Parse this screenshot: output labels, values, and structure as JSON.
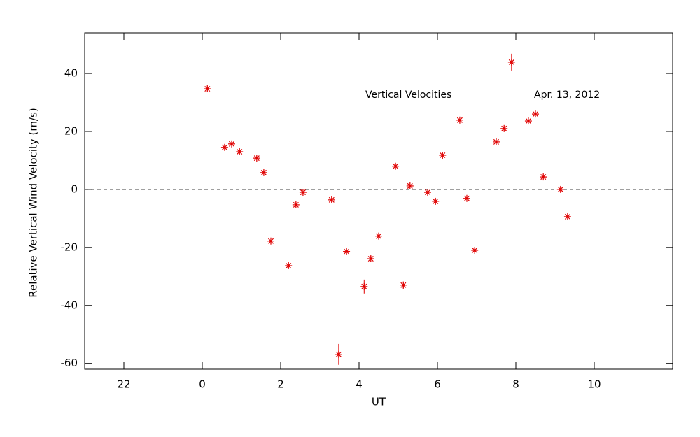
{
  "chart_data": {
    "type": "scatter",
    "annotations": [
      "Vertical Velocities",
      "Apr. 13, 2012"
    ],
    "xlabel": "UT",
    "ylabel": "Relative Vertical Wind Velocity (m/s)",
    "xlim": [
      -3,
      12
    ],
    "ylim": [
      -62,
      54
    ],
    "xticks": [
      {
        "value": -2,
        "label": "22"
      },
      0,
      2,
      4,
      6,
      8,
      10
    ],
    "yticks": [
      -60,
      -40,
      -20,
      0,
      20,
      40
    ],
    "reference_line": 0,
    "color": "#e00000",
    "x": [
      0.13,
      0.57,
      0.75,
      0.95,
      1.39,
      1.57,
      1.75,
      2.2,
      2.39,
      2.57,
      3.3,
      3.48,
      3.68,
      4.13,
      4.3,
      4.5,
      4.93,
      5.13,
      5.3,
      5.75,
      5.95,
      6.13,
      6.57,
      6.75,
      6.95,
      7.5,
      7.7,
      7.89,
      8.32,
      8.5,
      8.7,
      9.14,
      9.32
    ],
    "values": [
      34.7,
      14.5,
      15.7,
      13.0,
      10.8,
      5.8,
      -17.8,
      -26.3,
      -5.3,
      -1.0,
      -3.6,
      -56.9,
      -21.4,
      -33.5,
      -23.9,
      -16.1,
      8.0,
      -33.0,
      1.2,
      -1.0,
      -4.1,
      11.8,
      23.9,
      -3.1,
      -21.0,
      16.4,
      21.0,
      43.9,
      23.6,
      26.0,
      4.3,
      0.0,
      -9.4
    ],
    "errors": [
      0.8,
      0.8,
      0.8,
      0.8,
      0.8,
      0.8,
      0.8,
      0.8,
      0.8,
      0.8,
      0.8,
      3.6,
      0.8,
      2.4,
      1.0,
      0.8,
      0.8,
      1.2,
      0.8,
      0.8,
      0.8,
      0.8,
      0.8,
      0.8,
      0.8,
      0.8,
      0.8,
      2.9,
      0.8,
      0.8,
      0.8,
      0.8,
      0.8
    ]
  }
}
